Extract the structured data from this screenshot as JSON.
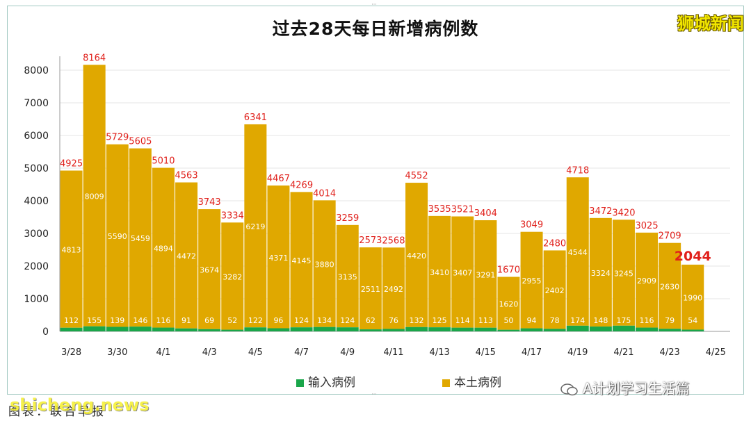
{
  "title": "过去28天每日新增病例数",
  "brand": "狮城新闻",
  "watermark": "shicheng.news",
  "footer_source": "图表：联合早报",
  "wechat_account": "A计划学习生活篇",
  "colors": {
    "imported": "#1aa64a",
    "local": "#e0a800",
    "total_label": "#e0201b",
    "grid": "#e6e6e6"
  },
  "chart_data": {
    "type": "bar",
    "stacked": true,
    "title": "过去28天每日新增病例数",
    "ylim": [
      0,
      8000
    ],
    "yticks": [
      0,
      1000,
      2000,
      3000,
      4000,
      5000,
      6000,
      7000,
      8000
    ],
    "grid": true,
    "legend_position": "bottom",
    "categories": [
      "3/28",
      "3/29",
      "3/30",
      "3/31",
      "4/1",
      "4/2",
      "4/3",
      "4/4",
      "4/5",
      "4/6",
      "4/7",
      "4/8",
      "4/9",
      "4/10",
      "4/11",
      "4/12",
      "4/13",
      "4/14",
      "4/15",
      "4/16",
      "4/17",
      "4/18",
      "4/19",
      "4/20",
      "4/21",
      "4/22",
      "4/23",
      "4/24",
      "4/25"
    ],
    "x_tick_labels": [
      "3/28",
      "3/30",
      "4/1",
      "4/3",
      "4/5",
      "4/7",
      "4/9",
      "4/11",
      "4/13",
      "4/15",
      "4/17",
      "4/19",
      "4/21",
      "4/23",
      "4/25"
    ],
    "series": [
      {
        "name": "输入病例",
        "values": [
          112,
          155,
          139,
          146,
          116,
          91,
          69,
          52,
          122,
          96,
          124,
          134,
          124,
          62,
          76,
          132,
          125,
          114,
          113,
          50,
          94,
          78,
          174,
          148,
          175,
          116,
          79,
          54,
          null
        ]
      },
      {
        "name": "本土病例",
        "values": [
          4813,
          8009,
          5590,
          5459,
          4894,
          4472,
          3674,
          3282,
          6219,
          4371,
          4145,
          3880,
          3135,
          2511,
          2492,
          4420,
          3410,
          3407,
          3291,
          1620,
          2955,
          2402,
          4544,
          3324,
          3245,
          2909,
          2630,
          1990,
          null
        ]
      }
    ],
    "totals": [
      4925,
      8164,
      5729,
      5605,
      5010,
      4563,
      3743,
      3334,
      6341,
      4467,
      4269,
      4014,
      3259,
      2573,
      2568,
      4552,
      3535,
      3521,
      3404,
      1670,
      3049,
      2480,
      4718,
      3472,
      3420,
      3025,
      2709,
      2044,
      null
    ]
  }
}
